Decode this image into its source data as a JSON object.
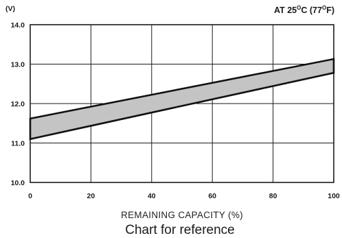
{
  "chart_data": {
    "type": "area",
    "title": "",
    "condition_label": {
      "prefix": "AT 25",
      "degree_symbol": "O",
      "middle": "C (77",
      "suffix": "F)"
    },
    "y_unit_label": "(V)",
    "xlabel": "REMAINING CAPACITY (%)",
    "caption": "Chart for reference",
    "xlim": [
      0,
      100
    ],
    "ylim": [
      10.0,
      14.0
    ],
    "x_ticks": [
      "0",
      "20",
      "40",
      "60",
      "80",
      "100"
    ],
    "y_ticks": [
      "10.0",
      "11.0",
      "12.0",
      "13.0",
      "14.0"
    ],
    "grid": true,
    "legend": "none",
    "series": [
      {
        "x": [
          0,
          100
        ],
        "upper": [
          11.62,
          13.13
        ],
        "lower": [
          11.1,
          12.78
        ]
      }
    ],
    "colors": {
      "band_fill": "#c4c4c4",
      "band_stroke": "#111111",
      "grid": "#1a1a1a",
      "text": "#1a1a1a"
    }
  }
}
